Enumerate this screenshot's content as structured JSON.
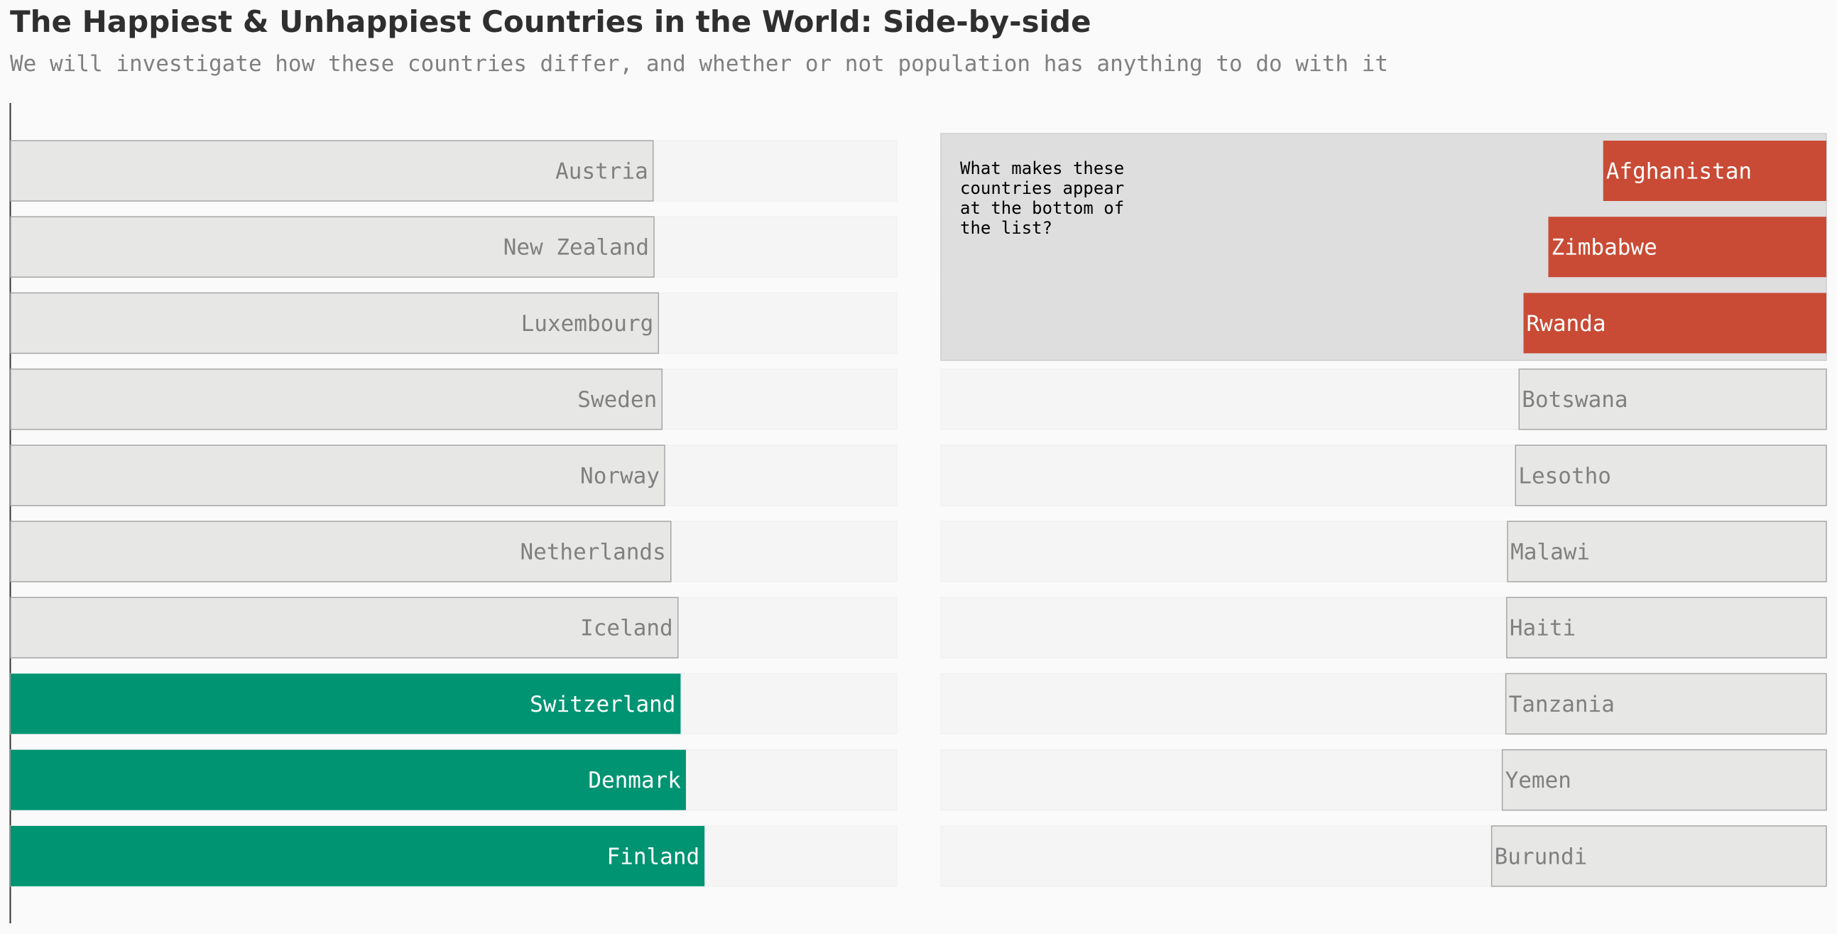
{
  "chart_data": {
    "type": "bar",
    "orientation": "horizontal",
    "title": "The Happiest & Unhappiest Countries in the World: Side-by-side",
    "subtitle": "We will investigate how these countries differ, and whether or not population has anything to do with it",
    "colors": {
      "happiest_highlight": "#009473",
      "unhappiest_highlight": "#c94b35",
      "default_bar": "#e7e8e6",
      "default_bar_border": "#a6a6a6",
      "track": "#f5f5f5",
      "highlight_text": "#ffffff",
      "default_text": "#808080",
      "annotation_box": "#dddddd"
    },
    "panels": [
      {
        "name": "happiest",
        "xlim": [
          0,
          10
        ],
        "direction": "left-to-right",
        "label_position": "inside-end",
        "categories": [
          "Austria",
          "New Zealand",
          "Luxembourg",
          "Sweden",
          "Norway",
          "Netherlands",
          "Iceland",
          "Switzerland",
          "Denmark",
          "Finland"
        ],
        "values": [
          7.25,
          7.26,
          7.31,
          7.35,
          7.38,
          7.45,
          7.53,
          7.56,
          7.62,
          7.83
        ],
        "highlighted": [
          false,
          false,
          false,
          false,
          false,
          false,
          false,
          true,
          true,
          true
        ]
      },
      {
        "name": "unhappiest",
        "xlim": [
          0,
          10
        ],
        "direction": "right-to-left",
        "label_position": "inside-start",
        "categories": [
          "Afghanistan",
          "Zimbabwe",
          "Rwanda",
          "Botswana",
          "Lesotho",
          "Malawi",
          "Haiti",
          "Tanzania",
          "Yemen",
          "Burundi"
        ],
        "values": [
          2.52,
          3.14,
          3.42,
          3.47,
          3.51,
          3.6,
          3.61,
          3.62,
          3.66,
          3.78
        ],
        "highlighted": [
          true,
          true,
          true,
          false,
          false,
          false,
          false,
          false,
          false,
          false
        ]
      }
    ],
    "annotation": {
      "lines": [
        "What makes these",
        "countries appear",
        "at the bottom of",
        "the list?"
      ],
      "panel": "unhappiest",
      "covers_rows": 3
    }
  }
}
